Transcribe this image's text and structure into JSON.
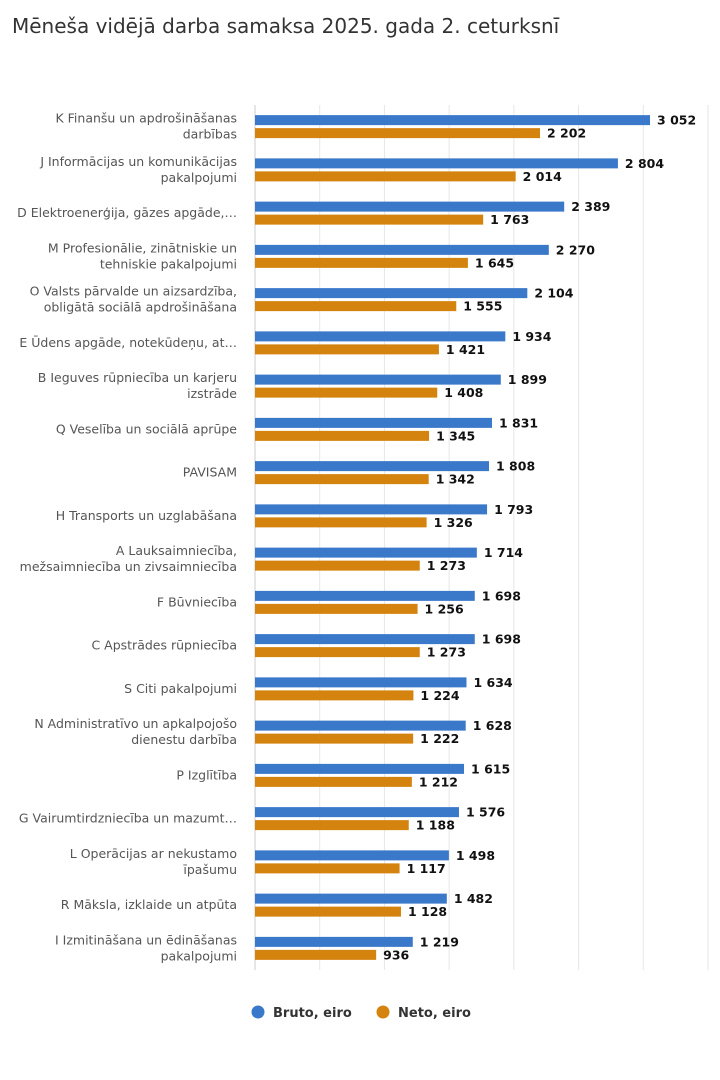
{
  "chart_data": {
    "type": "bar",
    "orientation": "horizontal",
    "title": "Mēneša vidējā darba samaksa 2025. gada 2. ceturksnī",
    "categories": [
      "K Finanšu un apdrošināšanas darbības",
      "J Informācijas un komunikācijas pakalpojumi",
      "D Elektroenerģija, gāzes apgāde,…",
      "M Profesionālie, zinātniskie un tehniskie pakalpojumi",
      "O Valsts pārvalde un aizsardzība, obligātā sociālā apdrošināšana",
      "E Ūdens apgāde, notekūdeņu, at…",
      "B Ieguves rūpniecība un karjeru izstrāde",
      "Q Veselība un sociālā aprūpe",
      "PAVISAM",
      "H Transports un uzglabāšana",
      "A Lauksaimniecība, mežsaimniecība un zivsaimniecība",
      "F Būvniecība",
      "C Apstrādes rūpniecība",
      "S Citi pakalpojumi",
      "N Administratīvo un apkalpojošo dienestu darbība",
      "P Izglītība",
      "G Vairumtirdzniecība un mazumt…",
      "L Operācijas ar nekustamo īpašumu",
      "R Māksla, izklaide un atpūta",
      "I Izmitināšana un ēdināšanas pakalpojumi"
    ],
    "category_lines": [
      [
        "K Finanšu un apdrošināšanas",
        "darbības"
      ],
      [
        "J Informācijas un komunikācijas",
        "pakalpojumi"
      ],
      [
        "D Elektroenerģija, gāzes apgāde,…"
      ],
      [
        "M Profesionālie, zinātniskie un",
        "tehniskie pakalpojumi"
      ],
      [
        "O Valsts pārvalde un aizsardzība,",
        "obligātā sociālā apdrošināšana"
      ],
      [
        "E Ūdens apgāde, notekūdeņu, at…"
      ],
      [
        "B Ieguves rūpniecība un karjeru",
        "izstrāde"
      ],
      [
        "Q Veselība un sociālā aprūpe"
      ],
      [
        "PAVISAM"
      ],
      [
        "H Transports un uzglabāšana"
      ],
      [
        "A Lauksaimniecība,",
        "mežsaimniecība un zivsaimniecība"
      ],
      [
        "F Būvniecība"
      ],
      [
        "C Apstrādes rūpniecība"
      ],
      [
        "S Citi pakalpojumi"
      ],
      [
        "N Administratīvo un apkalpojošo",
        "dienestu darbība"
      ],
      [
        "P Izglītība"
      ],
      [
        "G Vairumtirdzniecība un mazumt…"
      ],
      [
        "L Operācijas ar nekustamo",
        "īpašumu"
      ],
      [
        "R Māksla, izklaide un atpūta"
      ],
      [
        "I Izmitināšana un ēdināšanas",
        "pakalpojumi"
      ]
    ],
    "series": [
      {
        "name": "Bruto, eiro",
        "color": "#3a78c9",
        "values": [
          3052,
          2804,
          2389,
          2270,
          2104,
          1934,
          1899,
          1831,
          1808,
          1793,
          1714,
          1698,
          1698,
          1634,
          1628,
          1615,
          1576,
          1498,
          1482,
          1219
        ],
        "labels": [
          "3 052",
          "2 804",
          "2 389",
          "2 270",
          "2 104",
          "1 934",
          "1 899",
          "1 831",
          "1 808",
          "1 793",
          "1 714",
          "1 698",
          "1 698",
          "1 634",
          "1 628",
          "1 615",
          "1 576",
          "1 498",
          "1 482",
          "1 219"
        ]
      },
      {
        "name": "Neto, eiro",
        "color": "#d4830f",
        "values": [
          2202,
          2014,
          1763,
          1645,
          1555,
          1421,
          1408,
          1345,
          1342,
          1326,
          1273,
          1256,
          1273,
          1224,
          1222,
          1212,
          1188,
          1117,
          1128,
          936
        ],
        "labels": [
          "2 202",
          "2 014",
          "1 763",
          "1 645",
          "1 555",
          "1 421",
          "1 408",
          "1 345",
          "1 342",
          "1 326",
          "1 273",
          "1 256",
          "1 273",
          "1 224",
          "1 222",
          "1 212",
          "1 188",
          "1 117",
          "1 128",
          "936"
        ]
      }
    ],
    "xlim": [
      0,
      3500
    ],
    "grid": true,
    "legend_position": "bottom-center",
    "show_axis_tick_labels": false
  }
}
